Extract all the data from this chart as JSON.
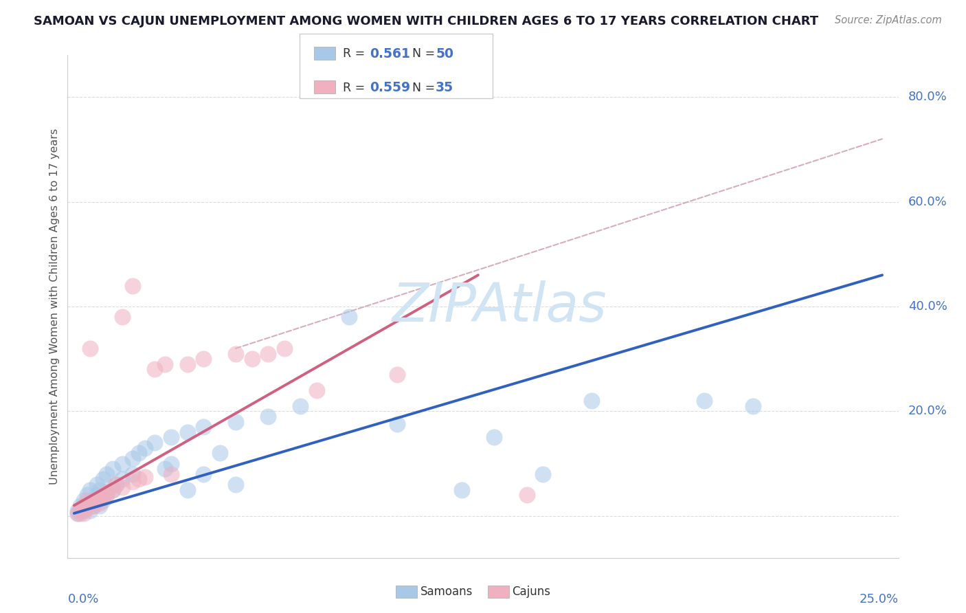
{
  "title": "SAMOAN VS CAJUN UNEMPLOYMENT AMONG WOMEN WITH CHILDREN AGES 6 TO 17 YEARS CORRELATION CHART",
  "source": "Source: ZipAtlas.com",
  "ylabel": "Unemployment Among Women with Children Ages 6 to 17 years",
  "samoan_R": "0.561",
  "samoan_N": "50",
  "cajun_R": "0.559",
  "cajun_N": "35",
  "samoan_color": "#a8c8e8",
  "cajun_color": "#f0b0c0",
  "samoan_line_color": "#3060c0",
  "cajun_line_color": "#d06080",
  "dashed_line_color": "#d0a0b0",
  "grid_color": "#d8d8d8",
  "title_color": "#1a1a2e",
  "stat_color": "#4472c4",
  "axis_label_color": "#4472c4",
  "ylabel_color": "#555555",
  "watermark_color": "#d0e4f4",
  "legend_label_samoan": "Samoans",
  "legend_label_cajun": "Cajuns",
  "xlim": [
    0.0,
    0.25
  ],
  "ylim": [
    -0.08,
    0.88
  ],
  "yticks": [
    0.0,
    0.2,
    0.4,
    0.6,
    0.8
  ],
  "ytick_labels": [
    "",
    "20.0%",
    "40.0%",
    "60.0%",
    "80.0%"
  ],
  "samoan_line_x": [
    0.0,
    0.25
  ],
  "samoan_line_y": [
    0.005,
    0.46
  ],
  "cajun_line_x": [
    0.0,
    0.125
  ],
  "cajun_line_y": [
    0.02,
    0.46
  ],
  "dashed_line_x": [
    0.05,
    0.25
  ],
  "dashed_line_y": [
    0.32,
    0.72
  ],
  "samoan_points": [
    [
      0.001,
      0.005
    ],
    [
      0.001,
      0.01
    ],
    [
      0.002,
      0.005
    ],
    [
      0.002,
      0.02
    ],
    [
      0.003,
      0.01
    ],
    [
      0.003,
      0.03
    ],
    [
      0.004,
      0.02
    ],
    [
      0.004,
      0.04
    ],
    [
      0.005,
      0.01
    ],
    [
      0.005,
      0.05
    ],
    [
      0.006,
      0.03
    ],
    [
      0.006,
      0.02
    ],
    [
      0.007,
      0.04
    ],
    [
      0.007,
      0.06
    ],
    [
      0.008,
      0.02
    ],
    [
      0.008,
      0.05
    ],
    [
      0.009,
      0.03
    ],
    [
      0.009,
      0.07
    ],
    [
      0.01,
      0.04
    ],
    [
      0.01,
      0.08
    ],
    [
      0.012,
      0.05
    ],
    [
      0.012,
      0.09
    ],
    [
      0.013,
      0.06
    ],
    [
      0.015,
      0.1
    ],
    [
      0.015,
      0.07
    ],
    [
      0.018,
      0.11
    ],
    [
      0.018,
      0.08
    ],
    [
      0.02,
      0.12
    ],
    [
      0.022,
      0.13
    ],
    [
      0.025,
      0.14
    ],
    [
      0.028,
      0.09
    ],
    [
      0.03,
      0.15
    ],
    [
      0.03,
      0.1
    ],
    [
      0.035,
      0.16
    ],
    [
      0.035,
      0.05
    ],
    [
      0.04,
      0.17
    ],
    [
      0.04,
      0.08
    ],
    [
      0.045,
      0.12
    ],
    [
      0.05,
      0.18
    ],
    [
      0.05,
      0.06
    ],
    [
      0.06,
      0.19
    ],
    [
      0.07,
      0.21
    ],
    [
      0.085,
      0.38
    ],
    [
      0.1,
      0.175
    ],
    [
      0.12,
      0.05
    ],
    [
      0.13,
      0.15
    ],
    [
      0.145,
      0.08
    ],
    [
      0.16,
      0.22
    ],
    [
      0.195,
      0.22
    ],
    [
      0.21,
      0.21
    ]
  ],
  "cajun_points": [
    [
      0.001,
      0.005
    ],
    [
      0.002,
      0.01
    ],
    [
      0.003,
      0.005
    ],
    [
      0.003,
      0.02
    ],
    [
      0.004,
      0.015
    ],
    [
      0.004,
      0.03
    ],
    [
      0.005,
      0.025
    ],
    [
      0.005,
      0.32
    ],
    [
      0.006,
      0.02
    ],
    [
      0.007,
      0.03
    ],
    [
      0.008,
      0.025
    ],
    [
      0.008,
      0.035
    ],
    [
      0.009,
      0.035
    ],
    [
      0.01,
      0.04
    ],
    [
      0.01,
      0.045
    ],
    [
      0.012,
      0.05
    ],
    [
      0.013,
      0.06
    ],
    [
      0.015,
      0.055
    ],
    [
      0.015,
      0.38
    ],
    [
      0.018,
      0.065
    ],
    [
      0.018,
      0.44
    ],
    [
      0.02,
      0.07
    ],
    [
      0.022,
      0.075
    ],
    [
      0.025,
      0.28
    ],
    [
      0.028,
      0.29
    ],
    [
      0.03,
      0.08
    ],
    [
      0.035,
      0.29
    ],
    [
      0.04,
      0.3
    ],
    [
      0.05,
      0.31
    ],
    [
      0.055,
      0.3
    ],
    [
      0.06,
      0.31
    ],
    [
      0.065,
      0.32
    ],
    [
      0.075,
      0.24
    ],
    [
      0.1,
      0.27
    ],
    [
      0.14,
      0.04
    ]
  ]
}
